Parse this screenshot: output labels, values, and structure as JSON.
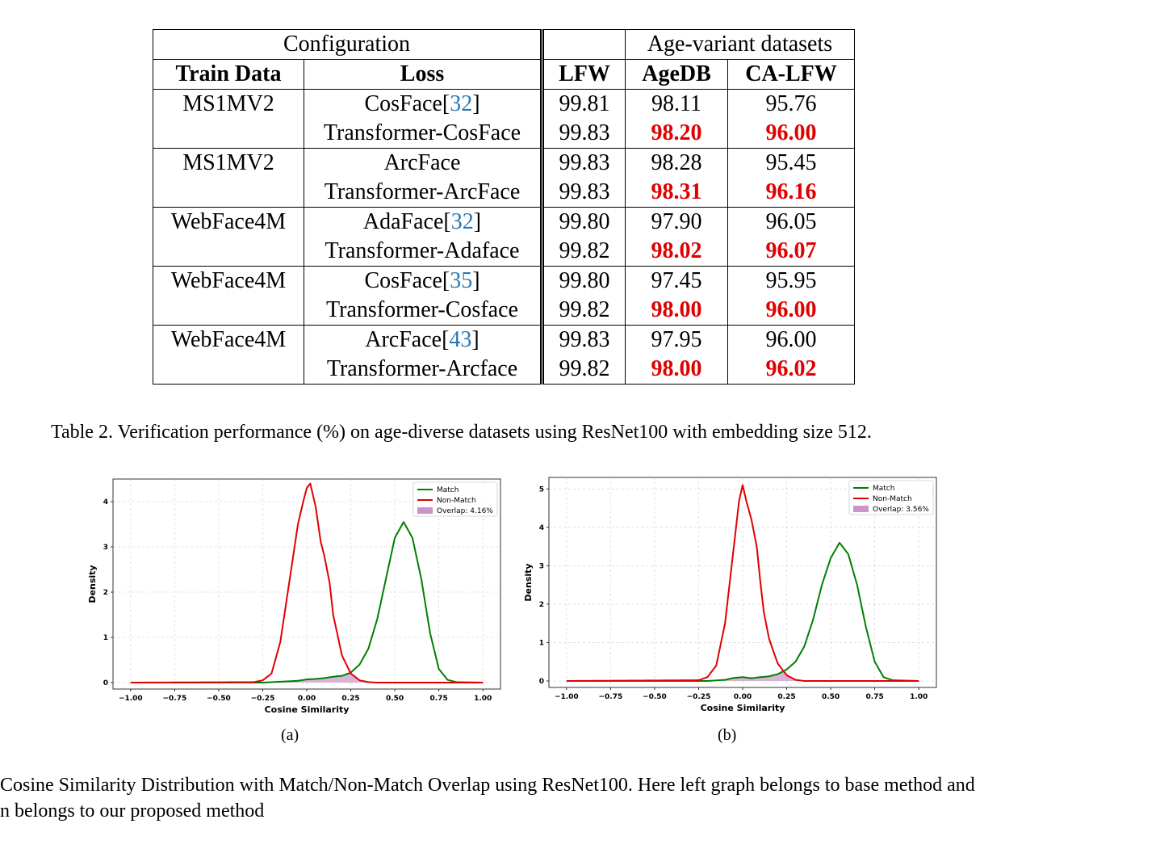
{
  "table": {
    "group_header_config": "Configuration",
    "group_header_age": "Age-variant datasets",
    "col_train": "Train Data",
    "col_loss": "Loss",
    "col_lfw": "LFW",
    "col_agedb": "AgeDB",
    "col_calfw": "CA-LFW",
    "rows": [
      {
        "train": "MS1MV2",
        "loss": "CosFace",
        "cite": "32",
        "lfw": "99.81",
        "agedb": "98.11",
        "calfw": "95.76",
        "best": false
      },
      {
        "train": "",
        "loss": "Transformer-CosFace",
        "cite": "",
        "lfw": "99.83",
        "agedb": "98.20",
        "calfw": "96.00",
        "best": true
      },
      {
        "train": "MS1MV2",
        "loss": "ArcFace",
        "cite": "",
        "lfw": "99.83",
        "agedb": "98.28",
        "calfw": "95.45",
        "best": false
      },
      {
        "train": "",
        "loss": "Transformer-ArcFace",
        "cite": "",
        "lfw": "99.83",
        "agedb": "98.31",
        "calfw": "96.16",
        "best": true
      },
      {
        "train": "WebFace4M",
        "loss": "AdaFace",
        "cite": "32",
        "lfw": "99.80",
        "agedb": "97.90",
        "calfw": "96.05",
        "best": false
      },
      {
        "train": "",
        "loss": "Transformer-Adaface",
        "cite": "",
        "lfw": "99.82",
        "agedb": "98.02",
        "calfw": "96.07",
        "best": true
      },
      {
        "train": "WebFace4M",
        "loss": "CosFace",
        "cite": "35",
        "lfw": "99.80",
        "agedb": "97.45",
        "calfw": "95.95",
        "best": false
      },
      {
        "train": "",
        "loss": "Transformer-Cosface",
        "cite": "",
        "lfw": "99.82",
        "agedb": "98.00",
        "calfw": "96.00",
        "best": true
      },
      {
        "train": "WebFace4M",
        "loss": "ArcFace",
        "cite": "43",
        "lfw": "99.83",
        "agedb": "97.95",
        "calfw": "96.00",
        "best": false
      },
      {
        "train": "",
        "loss": "Transformer-Arcface",
        "cite": "",
        "lfw": "99.82",
        "agedb": "98.00",
        "calfw": "96.02",
        "best": true
      }
    ],
    "caption": "Table 2. Verification performance (%) on age-diverse datasets using ResNet100 with embedding size 512."
  },
  "figure": {
    "caption_line1": "Cosine Similarity Distribution with Match/Non-Match Overlap using ResNet100.  Here left graph belongs to base method and",
    "caption_line2": "n belongs to our proposed method",
    "sublabel_a": "(a)",
    "sublabel_b": "(b)"
  },
  "chart_data": [
    {
      "type": "line",
      "xlabel": "Cosine Similarity",
      "ylabel": "Density",
      "xlim": [
        -1.0,
        1.0
      ],
      "ylim": [
        0,
        4.5
      ],
      "xticks": [
        "−1.00",
        "−0.75",
        "−0.50",
        "−0.25",
        "0.00",
        "0.25",
        "0.50",
        "0.75",
        "1.00"
      ],
      "yticks": [
        "0",
        "1",
        "2",
        "3",
        "4"
      ],
      "grid": true,
      "legend_position": "top-right",
      "series": [
        {
          "name": "Match",
          "color": "#008000",
          "x": [
            -1.0,
            -0.25,
            -0.15,
            -0.05,
            0.0,
            0.05,
            0.1,
            0.15,
            0.2,
            0.25,
            0.3,
            0.35,
            0.4,
            0.45,
            0.5,
            0.55,
            0.6,
            0.65,
            0.7,
            0.75,
            0.8,
            0.85,
            1.0
          ],
          "y": [
            0,
            0,
            0.02,
            0.04,
            0.07,
            0.08,
            0.1,
            0.13,
            0.15,
            0.22,
            0.4,
            0.75,
            1.4,
            2.3,
            3.2,
            3.55,
            3.2,
            2.3,
            1.1,
            0.3,
            0.06,
            0.01,
            0
          ]
        },
        {
          "name": "Non-Match",
          "color": "#e00000",
          "x": [
            -1.0,
            -0.3,
            -0.25,
            -0.2,
            -0.15,
            -0.1,
            -0.05,
            -0.02,
            0.0,
            0.02,
            0.05,
            0.08,
            0.1,
            0.13,
            0.15,
            0.2,
            0.25,
            0.3,
            0.35,
            0.4,
            1.0
          ],
          "y": [
            0,
            0.01,
            0.05,
            0.2,
            0.9,
            2.2,
            3.5,
            4.0,
            4.3,
            4.4,
            3.9,
            3.1,
            2.8,
            2.2,
            1.5,
            0.6,
            0.2,
            0.05,
            0.01,
            0,
            0
          ]
        }
      ],
      "overlap_label": "Overlap: 4.16%",
      "overlap_color": "#c994c7"
    },
    {
      "type": "line",
      "xlabel": "Cosine Similarity",
      "ylabel": "Density",
      "xlim": [
        -1.0,
        1.0
      ],
      "ylim": [
        0,
        5.3
      ],
      "xticks": [
        "−1.00",
        "−0.75",
        "−0.50",
        "−0.25",
        "0.00",
        "0.25",
        "0.50",
        "0.75",
        "1.00"
      ],
      "yticks": [
        "0",
        "1",
        "2",
        "3",
        "4",
        "5"
      ],
      "grid": true,
      "legend_position": "top-right",
      "series": [
        {
          "name": "Match",
          "color": "#008000",
          "x": [
            -1.0,
            -0.2,
            -0.1,
            -0.05,
            0.0,
            0.05,
            0.1,
            0.15,
            0.2,
            0.25,
            0.3,
            0.35,
            0.4,
            0.45,
            0.5,
            0.55,
            0.6,
            0.65,
            0.7,
            0.75,
            0.8,
            0.85,
            1.0
          ],
          "y": [
            0,
            0,
            0.03,
            0.08,
            0.1,
            0.07,
            0.1,
            0.12,
            0.18,
            0.3,
            0.5,
            0.9,
            1.6,
            2.5,
            3.2,
            3.6,
            3.3,
            2.5,
            1.4,
            0.5,
            0.1,
            0.02,
            0
          ]
        },
        {
          "name": "Non-Match",
          "color": "#e00000",
          "x": [
            -1.0,
            -0.25,
            -0.2,
            -0.15,
            -0.1,
            -0.05,
            -0.02,
            0.0,
            0.02,
            0.05,
            0.08,
            0.1,
            0.12,
            0.15,
            0.18,
            0.2,
            0.25,
            0.3,
            0.35,
            1.0
          ],
          "y": [
            0,
            0.02,
            0.1,
            0.4,
            1.5,
            3.5,
            4.7,
            5.1,
            4.7,
            4.2,
            3.5,
            2.6,
            1.8,
            1.1,
            0.7,
            0.45,
            0.15,
            0.03,
            0,
            0
          ]
        }
      ],
      "overlap_label": "Overlap: 3.56%",
      "overlap_color": "#c994c7"
    }
  ]
}
